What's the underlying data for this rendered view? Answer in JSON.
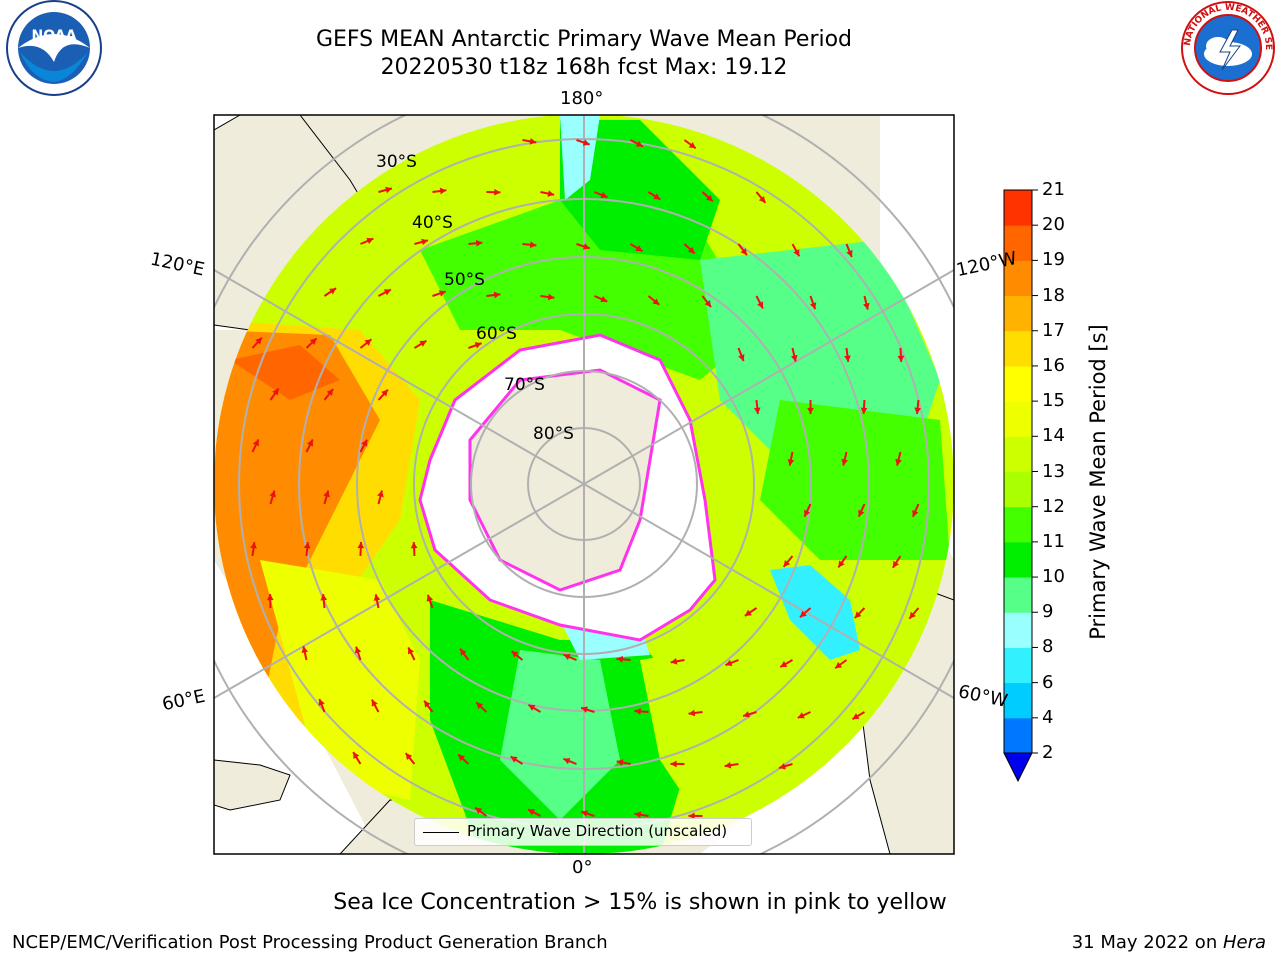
{
  "title": {
    "line1": "GEFS MEAN Antarctic Primary Wave Mean Period",
    "line2": "20220530 t18z 168h fcst   Max: 19.12"
  },
  "subtitle": "Sea Ice Concentration > 15% is shown in pink to yellow",
  "footer": {
    "left": "NCEP/EMC/Verification Post Processing Product Generation Branch",
    "right_prefix": "31 May 2022 on ",
    "right_host": "Hera"
  },
  "legend": {
    "label": "Primary Wave Direction (unscaled)"
  },
  "colorbar": {
    "title": "Primary Wave Mean Period [s]",
    "ticks": [
      "2",
      "4",
      "6",
      "8",
      "9",
      "10",
      "11",
      "12",
      "13",
      "14",
      "15",
      "16",
      "17",
      "18",
      "19",
      "20",
      "21"
    ],
    "colors": [
      "#0077ff",
      "#00ccff",
      "#33f0ff",
      "#99ffff",
      "#55ff88",
      "#00ee00",
      "#44ff00",
      "#aaff00",
      "#ccff00",
      "#eeff00",
      "#ffff00",
      "#ffdd00",
      "#ffb300",
      "#ff8c00",
      "#ff6600",
      "#ff3300",
      "#ff0000"
    ],
    "under_color": "#0000ee"
  },
  "map_labels": {
    "lon_top": "180°",
    "lon_bottom": "0°",
    "lon_left_upper": "120°E",
    "lon_left_lower": "60°E",
    "lon_right_upper": "120°W",
    "lon_right_lower": "60°W",
    "lat_30": "30°S",
    "lat_40": "40°S",
    "lat_50": "50°S",
    "lat_60": "60°S",
    "lat_70": "70°S",
    "lat_80": "80°S"
  },
  "logos": {
    "noaa": "NOAA",
    "nws_ring": "NATIONAL WEATHER SERVICE"
  },
  "colors": {
    "land": "#efecdc",
    "ice": "#ffffff",
    "ice_edge": "#ff33ee",
    "arrow": "#ee1111",
    "grid": "#b0b0b0"
  }
}
